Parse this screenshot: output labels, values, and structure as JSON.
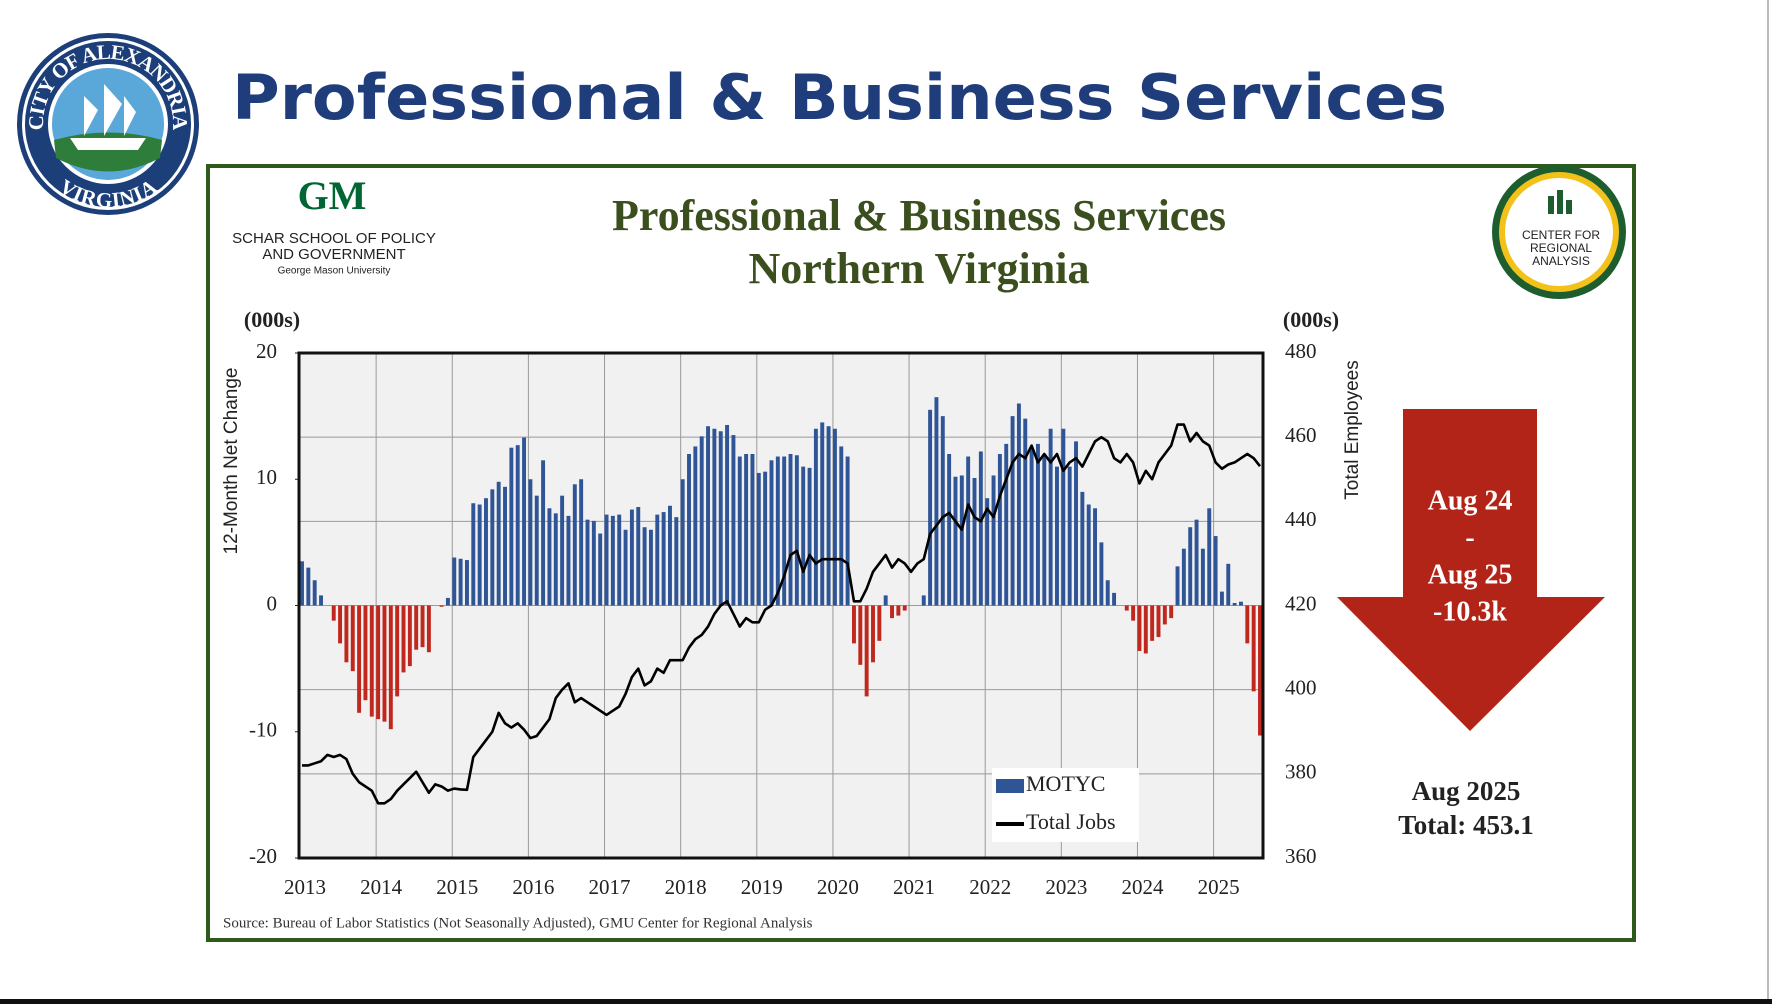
{
  "seal": {
    "top": "CITY OF ALEXANDRIA",
    "bottom": "VIRGINIA"
  },
  "header": {
    "title": "Professional & Business Services"
  },
  "schar_logo": {
    "mark": "GM",
    "line1": "SCHAR SCHOOL OF POLICY",
    "line2": "AND GOVERNMENT",
    "line3": "George Mason University"
  },
  "cra_logo": {
    "line1": "CENTER FOR",
    "line2": "REGIONAL",
    "line3": "ANALYSIS"
  },
  "chart_data": {
    "type": "combo",
    "title": "Professional & Business Services",
    "subtitle": "Northern Virginia",
    "y_unit": "(000s)",
    "y2_unit": "(000s)",
    "ylabel": "12-Month Net Change",
    "y2label": "Total Employees",
    "categories": [
      "2013",
      null,
      null,
      null,
      null,
      null,
      null,
      null,
      null,
      null,
      null,
      null,
      "2014",
      null,
      null,
      null,
      null,
      null,
      null,
      null,
      null,
      null,
      null,
      null,
      "2015",
      null,
      null,
      null,
      null,
      null,
      null,
      null,
      null,
      null,
      null,
      null,
      "2016",
      null,
      null,
      null,
      null,
      null,
      null,
      null,
      null,
      null,
      null,
      null,
      "2017",
      null,
      null,
      null,
      null,
      null,
      null,
      null,
      null,
      null,
      null,
      null,
      "2018",
      null,
      null,
      null,
      null,
      null,
      null,
      null,
      null,
      null,
      null,
      null,
      "2019",
      null,
      null,
      null,
      null,
      null,
      null,
      null,
      null,
      null,
      null,
      null,
      "2020",
      null,
      null,
      null,
      null,
      null,
      null,
      null,
      null,
      null,
      null,
      null,
      "2021",
      null,
      null,
      null,
      null,
      null,
      null,
      null,
      null,
      null,
      null,
      null,
      "2022",
      null,
      null,
      null,
      null,
      null,
      null,
      null,
      null,
      null,
      null,
      null,
      "2023",
      null,
      null,
      null,
      null,
      null,
      null,
      null,
      null,
      null,
      null,
      null,
      "2024",
      null,
      null,
      null,
      null,
      null,
      null,
      null,
      null,
      null,
      null,
      null,
      "2025",
      null,
      null,
      null,
      null,
      null,
      null,
      null
    ],
    "series": [
      {
        "name": "MOTYC",
        "type": "bar",
        "color": "#2f5597",
        "negative_color": "#c0281e",
        "values": [
          3.5,
          3.0,
          2.0,
          0.8,
          0,
          -1.2,
          -3.0,
          -4.5,
          -5.2,
          -8.5,
          -7.5,
          -8.8,
          -9.0,
          -9.2,
          -9.8,
          -7.2,
          -5.3,
          -4.8,
          -3.5,
          -3.3,
          -3.7,
          0,
          -0.1,
          0.6,
          3.8,
          3.7,
          3.6,
          8.1,
          8.0,
          8.5,
          9.2,
          9.8,
          9.4,
          12.5,
          12.7,
          13.3,
          10.0,
          8.7,
          11.5,
          7.7,
          7.3,
          8.7,
          7.1,
          9.6,
          10.0,
          6.8,
          6.7,
          5.7,
          7.2,
          7.1,
          7.2,
          6.0,
          7.6,
          7.8,
          6.2,
          6.0,
          7.2,
          7.4,
          7.9,
          7.0,
          10.0,
          12.0,
          12.6,
          13.4,
          14.2,
          14.0,
          13.8,
          14.3,
          13.5,
          11.8,
          12.0,
          12.0,
          10.5,
          10.6,
          11.5,
          11.8,
          11.8,
          12.0,
          11.9,
          11.0,
          10.9,
          14.0,
          14.5,
          14.2,
          14.0,
          12.6,
          11.8,
          -3.0,
          -4.7,
          -7.2,
          -4.5,
          -2.8,
          0.8,
          -1.0,
          -0.8,
          -0.4,
          0,
          0,
          0.8,
          15.5,
          16.5,
          15.0,
          12.0,
          10.2,
          10.3,
          11.8,
          10.1,
          12.2,
          8.5,
          10.3,
          12.0,
          12.8,
          15.0,
          16.0,
          14.8,
          12.5,
          12.8,
          12.0,
          14.0,
          11.0,
          14.0,
          11.0,
          13.0,
          9.0,
          8.0,
          7.7,
          5.0,
          2.0,
          1.0,
          0,
          -0.4,
          -1.2,
          -3.6,
          -3.8,
          -2.8,
          -2.5,
          -1.5,
          -1.0,
          3.1,
          4.5,
          6.2,
          6.8,
          4.5,
          7.7,
          5.5,
          1.1,
          3.3,
          0.2,
          0.3,
          -3.0,
          -6.8,
          -10.3
        ]
      },
      {
        "name": "Total Jobs",
        "type": "line",
        "axis": "y2",
        "color": "#000000",
        "values": [
          382,
          382,
          382.5,
          383,
          384.5,
          384,
          384.5,
          383.5,
          380,
          378,
          377,
          376,
          373,
          373,
          374,
          376,
          377.5,
          379,
          380.5,
          378,
          375.5,
          377.5,
          377,
          376,
          376.5,
          376.3,
          376.2,
          384,
          386,
          388,
          390,
          394.5,
          392,
          391,
          392,
          390.5,
          388.5,
          389,
          391,
          393,
          398,
          400,
          401.5,
          397,
          398,
          397,
          396,
          395,
          394,
          395,
          396,
          399,
          403,
          405,
          401,
          402,
          405,
          404,
          407,
          407,
          407,
          410,
          412,
          413,
          415,
          418,
          420,
          421,
          418,
          415,
          417,
          416,
          416,
          419,
          420,
          423,
          427,
          432,
          433,
          428,
          432,
          430,
          431,
          431,
          431,
          431,
          430,
          421,
          421,
          424,
          428,
          430,
          432,
          429,
          431,
          430,
          428,
          430,
          431,
          437,
          439,
          441,
          442,
          440,
          438,
          444,
          441,
          440,
          443,
          441,
          446,
          450,
          454,
          456,
          455,
          458,
          454,
          456,
          454,
          456,
          452,
          454,
          455,
          453,
          456,
          459,
          460,
          459,
          455,
          454,
          456,
          454,
          449,
          452,
          450,
          454,
          456,
          458,
          463,
          463,
          459,
          461,
          459,
          458,
          454,
          452.5,
          453.5,
          454,
          455,
          456,
          455,
          453.1
        ]
      }
    ],
    "ylim": [
      -20,
      20
    ],
    "yticks": [
      -20,
      -10,
      0,
      10,
      20
    ],
    "y2lim": [
      360,
      480
    ],
    "y2ticks": [
      360,
      380,
      400,
      420,
      440,
      460,
      480
    ],
    "grid": true,
    "legend": "bottom-right",
    "source": "Source: Bureau of Labor Statistics (Not Seasonally Adjusted), GMU Center for Regional Analysis"
  },
  "callout": {
    "line1": "Aug 24",
    "line2": "-",
    "line3": "Aug 25",
    "line4": "-10.3k",
    "color": "#b22418"
  },
  "total": {
    "line1": "Aug 2025",
    "line2": "Total: 453.1"
  }
}
